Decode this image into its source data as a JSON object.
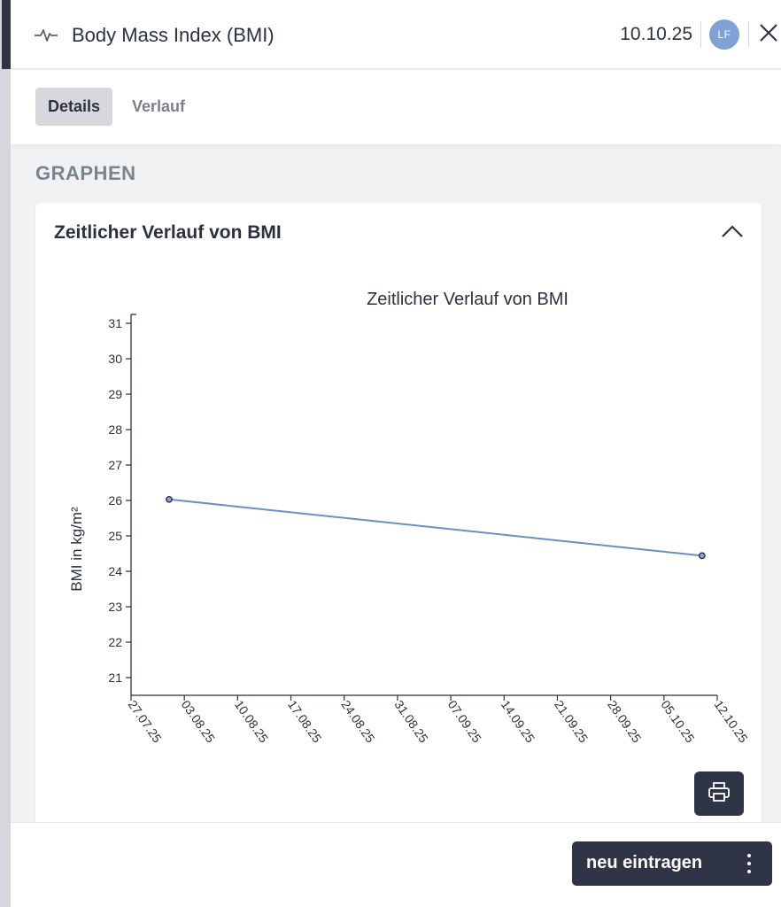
{
  "header": {
    "title": "Body Mass Index (BMI)",
    "date": "10.10.25",
    "avatar_initials": "LF",
    "pulse_icon": "pulse-icon",
    "close_icon": "close-icon"
  },
  "tabs": [
    {
      "label": "Details",
      "active": true
    },
    {
      "label": "Verlauf",
      "active": false
    }
  ],
  "section_title": "GRAPHEN",
  "card": {
    "title": "Zeitlicher Verlauf von BMI",
    "collapse_icon": "chevron-up-icon",
    "print_icon": "printer-icon"
  },
  "chart_data": {
    "type": "line",
    "title": "Zeitlicher Verlauf von BMI",
    "xlabel": "",
    "ylabel": "BMI in kg/m²",
    "ylim": [
      20.5,
      31.25
    ],
    "yticks": [
      21,
      22,
      23,
      24,
      25,
      26,
      27,
      28,
      29,
      30,
      31
    ],
    "xticks": [
      "27.07.25",
      "03.08.25",
      "10.08.25",
      "17.08.25",
      "24.08.25",
      "31.08.25",
      "07.09.25",
      "14.09.25",
      "21.09.25",
      "28.09.25",
      "05.10.25",
      "12.10.25"
    ],
    "series": [
      {
        "points": [
          {
            "x": "01.08.25",
            "y": 26.03
          },
          {
            "x": "10.10.25",
            "y": 24.44
          }
        ]
      }
    ],
    "grid": false,
    "line_color": "#6b8fbf"
  },
  "footer": {
    "primary_button": "neu eintragen",
    "more_icon": "more-vertical-icon"
  }
}
